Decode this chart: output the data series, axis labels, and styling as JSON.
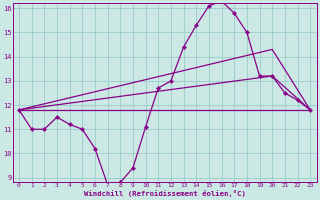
{
  "xlabel": "Windchill (Refroidissement éolien,°C)",
  "bg_color": "#cce8e4",
  "line_color": "#880088",
  "grid_color": "#99cccc",
  "series1_x": [
    0,
    1,
    2,
    3,
    4,
    5,
    6,
    7,
    8,
    9,
    10,
    11,
    12,
    13,
    14,
    15,
    16,
    17,
    18,
    19,
    20,
    21,
    22,
    23
  ],
  "series1_y": [
    11.8,
    11.0,
    11.0,
    11.5,
    11.2,
    11.0,
    10.2,
    8.7,
    8.8,
    9.4,
    11.1,
    12.7,
    13.0,
    14.4,
    15.3,
    16.1,
    16.3,
    15.8,
    15.0,
    13.2,
    13.2,
    12.5,
    12.2,
    11.8
  ],
  "series2_x": [
    0,
    23
  ],
  "series2_y": [
    11.8,
    11.8
  ],
  "series3_x": [
    0,
    20,
    23
  ],
  "series3_y": [
    11.8,
    14.3,
    11.8
  ],
  "series4_x": [
    0,
    20,
    23
  ],
  "series4_y": [
    11.8,
    13.2,
    11.8
  ],
  "xmin": -0.5,
  "xmax": 23.5,
  "ymin": 9,
  "ymax": 16,
  "yticks": [
    9,
    10,
    11,
    12,
    13,
    14,
    15,
    16
  ],
  "xticks": [
    0,
    1,
    2,
    3,
    4,
    5,
    6,
    7,
    8,
    9,
    10,
    11,
    12,
    13,
    14,
    15,
    16,
    17,
    18,
    19,
    20,
    21,
    22,
    23
  ]
}
